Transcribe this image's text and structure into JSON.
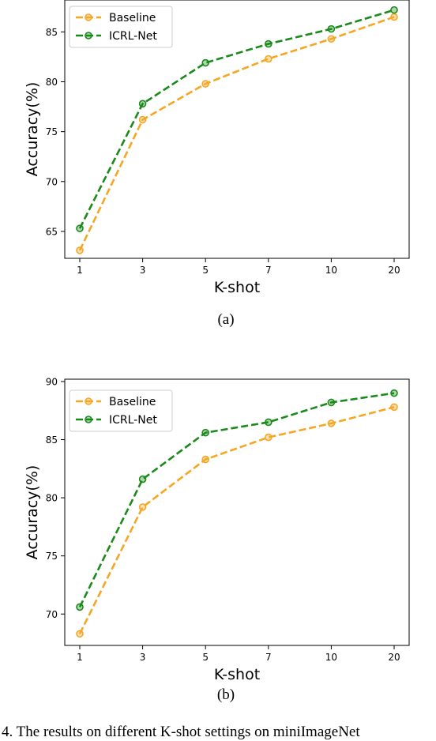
{
  "figure": {
    "caption_fragment": "4. The results on different K-shot settings on miniImageNet",
    "colors": {
      "baseline": "#f5a623",
      "icrl": "#1a8a1a",
      "axis": "#000000"
    }
  },
  "chart_data": [
    {
      "type": "line",
      "panel_label": "(a)",
      "xlabel": "K-shot",
      "ylabel": "Accuracy(%)",
      "x": [
        "1",
        "3",
        "5",
        "7",
        "10",
        "20"
      ],
      "ylim": [
        62.3,
        88.2
      ],
      "yticks": [
        65,
        70,
        75,
        80,
        85
      ],
      "grid": false,
      "legend_position": "top-left",
      "series": [
        {
          "name": "Baseline",
          "color": "#f5a623",
          "values": [
            63.1,
            76.2,
            79.8,
            82.3,
            84.3,
            86.5
          ]
        },
        {
          "name": "ICRL-Net",
          "color": "#1a8a1a",
          "values": [
            65.3,
            77.8,
            81.9,
            83.8,
            85.3,
            87.2
          ]
        }
      ]
    },
    {
      "type": "line",
      "panel_label": "(b)",
      "xlabel": "K-shot",
      "ylabel": "Accuracy(%)",
      "x": [
        "1",
        "3",
        "5",
        "7",
        "10",
        "20"
      ],
      "ylim": [
        67.3,
        90.2
      ],
      "yticks": [
        70,
        75,
        80,
        85,
        90
      ],
      "grid": false,
      "legend_position": "top-left",
      "series": [
        {
          "name": "Baseline",
          "color": "#f5a623",
          "values": [
            68.3,
            79.2,
            83.3,
            85.2,
            86.4,
            87.8
          ]
        },
        {
          "name": "ICRL-Net",
          "color": "#1a8a1a",
          "values": [
            70.6,
            81.6,
            85.6,
            86.5,
            88.2,
            89.0
          ]
        }
      ]
    }
  ]
}
